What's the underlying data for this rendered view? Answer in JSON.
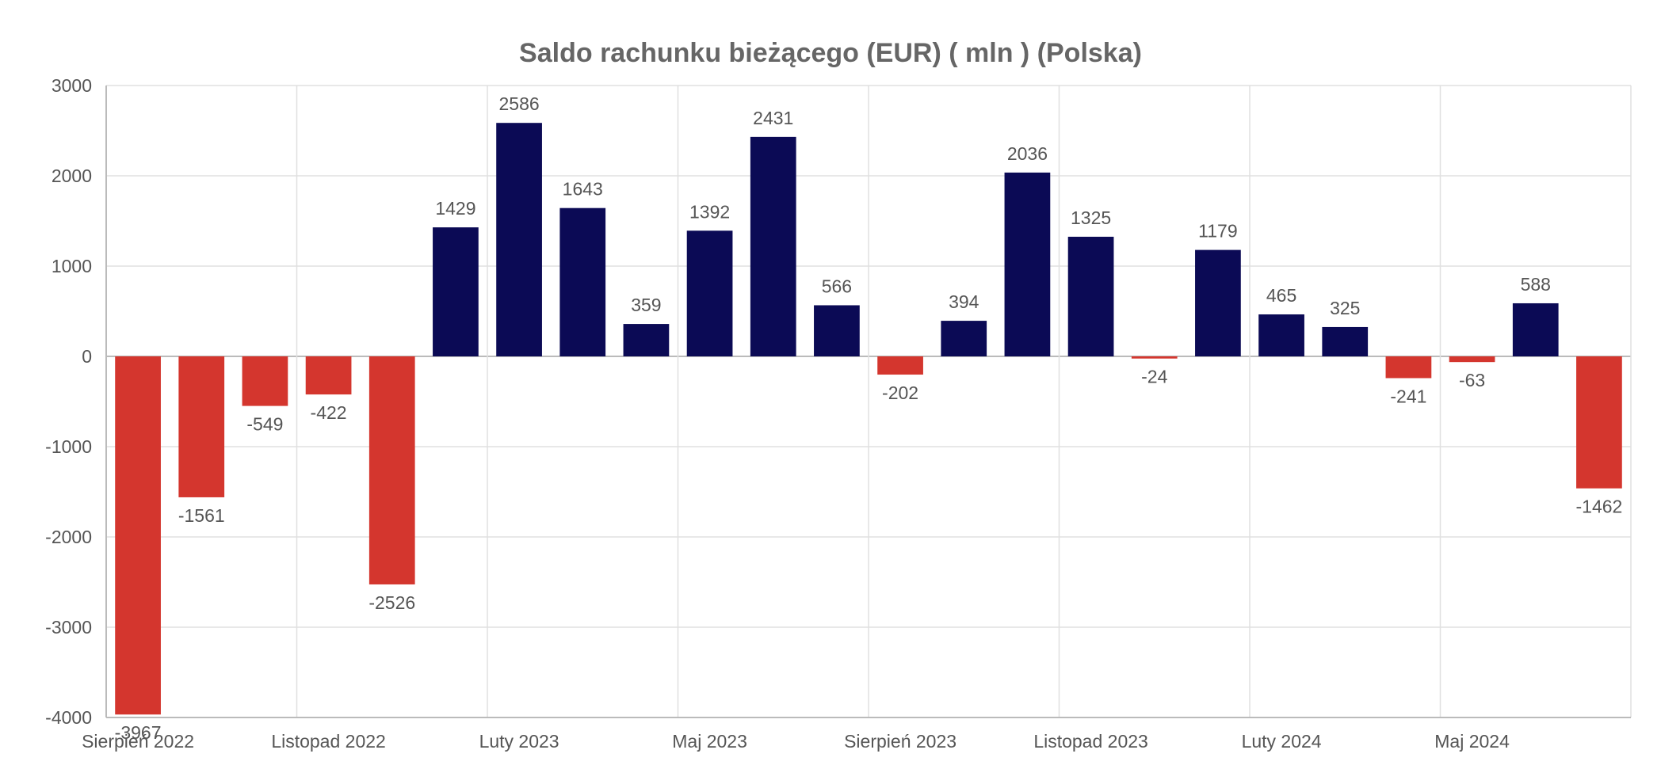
{
  "chart_data": {
    "type": "bar",
    "title": "Saldo rachunku bieżącego (EUR) ( mln ) (Polska)",
    "xlabel": "",
    "ylabel": "",
    "ylim": [
      -4000,
      3000
    ],
    "yticks": [
      3000,
      2000,
      1000,
      0,
      -1000,
      -2000,
      -3000,
      -4000
    ],
    "grid": true,
    "legend": "none",
    "xtick_labels": [
      {
        "label": "Sierpień 2022",
        "index": 0
      },
      {
        "label": "Listopad 2022",
        "index": 3
      },
      {
        "label": "Luty 2023",
        "index": 6
      },
      {
        "label": "Maj 2023",
        "index": 9
      },
      {
        "label": "Sierpień 2023",
        "index": 12
      },
      {
        "label": "Listopad 2023",
        "index": 15
      },
      {
        "label": "Luty 2024",
        "index": 18
      },
      {
        "label": "Maj 2024",
        "index": 21
      }
    ],
    "values": [
      -3967,
      -1561,
      -549,
      -422,
      -2526,
      1429,
      2586,
      1643,
      359,
      1392,
      2431,
      566,
      -202,
      394,
      2036,
      1325,
      -24,
      1179,
      465,
      325,
      -241,
      -63,
      588,
      -1462
    ],
    "colors": {
      "positive": "#0b0a55",
      "negative": "#d4362e",
      "grid": "#e0e0e0",
      "axis": "#bbbbbb"
    }
  }
}
